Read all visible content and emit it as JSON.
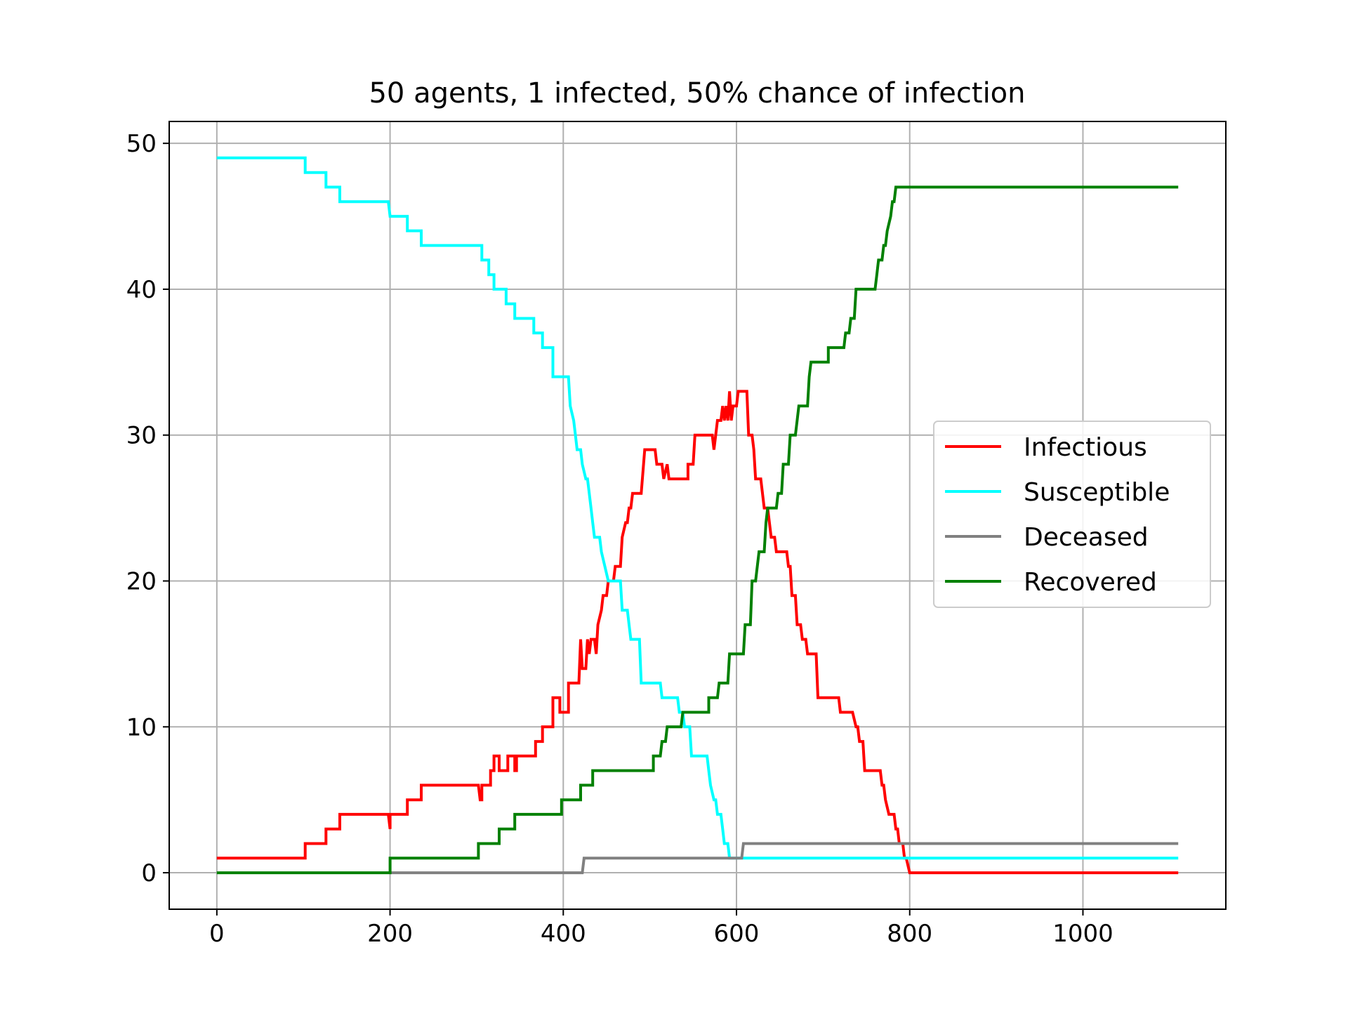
{
  "chart_data": {
    "type": "line",
    "title": "50 agents, 1 infected, 50% chance of infection",
    "xlabel": "",
    "ylabel": "",
    "xlim": [
      -55,
      1165
    ],
    "ylim": [
      -2.5,
      51.5
    ],
    "xticks": [
      0,
      200,
      400,
      600,
      800,
      1000
    ],
    "yticks": [
      0,
      10,
      20,
      30,
      40,
      50
    ],
    "grid": true,
    "legend_position": "center-right",
    "series": [
      {
        "name": "Infectious",
        "color": "#ff0000",
        "points": [
          [
            0,
            1
          ],
          [
            102,
            1
          ],
          [
            102,
            2
          ],
          [
            126,
            2
          ],
          [
            126,
            3
          ],
          [
            142,
            3
          ],
          [
            142,
            4
          ],
          [
            198,
            4
          ],
          [
            200,
            3
          ],
          [
            200,
            4
          ],
          [
            220,
            4
          ],
          [
            220,
            5
          ],
          [
            236,
            5
          ],
          [
            236,
            6
          ],
          [
            302,
            6
          ],
          [
            304,
            5
          ],
          [
            306,
            5
          ],
          [
            306,
            6
          ],
          [
            316,
            6
          ],
          [
            316,
            7
          ],
          [
            320,
            7
          ],
          [
            320,
            8
          ],
          [
            326,
            8
          ],
          [
            326,
            7
          ],
          [
            336,
            7
          ],
          [
            336,
            8
          ],
          [
            344,
            8
          ],
          [
            344,
            7
          ],
          [
            346,
            7
          ],
          [
            346,
            8
          ],
          [
            368,
            8
          ],
          [
            368,
            9
          ],
          [
            376,
            9
          ],
          [
            376,
            10
          ],
          [
            388,
            10
          ],
          [
            388,
            12
          ],
          [
            396,
            12
          ],
          [
            396,
            11
          ],
          [
            406,
            11
          ],
          [
            406,
            13
          ],
          [
            418,
            13
          ],
          [
            420,
            16
          ],
          [
            422,
            14
          ],
          [
            426,
            14
          ],
          [
            428,
            16
          ],
          [
            430,
            15
          ],
          [
            432,
            16
          ],
          [
            436,
            16
          ],
          [
            438,
            15
          ],
          [
            440,
            17
          ],
          [
            444,
            18
          ],
          [
            446,
            19
          ],
          [
            450,
            19
          ],
          [
            452,
            20
          ],
          [
            458,
            20
          ],
          [
            460,
            21
          ],
          [
            466,
            21
          ],
          [
            468,
            23
          ],
          [
            472,
            24
          ],
          [
            474,
            24
          ],
          [
            476,
            25
          ],
          [
            478,
            25
          ],
          [
            480,
            26
          ],
          [
            490,
            26
          ],
          [
            494,
            29
          ],
          [
            506,
            29
          ],
          [
            508,
            28
          ],
          [
            514,
            28
          ],
          [
            516,
            27
          ],
          [
            520,
            28
          ],
          [
            522,
            27
          ],
          [
            544,
            27
          ],
          [
            544,
            28
          ],
          [
            550,
            28
          ],
          [
            552,
            30
          ],
          [
            572,
            30
          ],
          [
            574,
            29
          ],
          [
            578,
            31
          ],
          [
            582,
            31
          ],
          [
            584,
            32
          ],
          [
            586,
            31
          ],
          [
            588,
            32
          ],
          [
            590,
            31
          ],
          [
            592,
            33
          ],
          [
            594,
            31
          ],
          [
            596,
            32
          ],
          [
            600,
            32
          ],
          [
            602,
            33
          ],
          [
            612,
            33
          ],
          [
            614,
            30
          ],
          [
            618,
            30
          ],
          [
            620,
            29
          ],
          [
            622,
            27
          ],
          [
            628,
            27
          ],
          [
            632,
            25
          ],
          [
            636,
            25
          ],
          [
            640,
            23
          ],
          [
            644,
            23
          ],
          [
            646,
            22
          ],
          [
            658,
            22
          ],
          [
            660,
            21
          ],
          [
            662,
            21
          ],
          [
            664,
            19
          ],
          [
            668,
            19
          ],
          [
            670,
            17
          ],
          [
            674,
            17
          ],
          [
            676,
            16
          ],
          [
            680,
            16
          ],
          [
            682,
            15
          ],
          [
            692,
            15
          ],
          [
            694,
            12
          ],
          [
            718,
            12
          ],
          [
            720,
            11
          ],
          [
            734,
            11
          ],
          [
            738,
            10
          ],
          [
            740,
            10
          ],
          [
            742,
            9
          ],
          [
            746,
            9
          ],
          [
            748,
            7
          ],
          [
            766,
            7
          ],
          [
            768,
            6
          ],
          [
            770,
            6
          ],
          [
            772,
            5
          ],
          [
            776,
            4
          ],
          [
            782,
            4
          ],
          [
            784,
            3
          ],
          [
            786,
            3
          ],
          [
            788,
            2
          ],
          [
            792,
            2
          ],
          [
            794,
            1
          ],
          [
            796,
            1
          ],
          [
            800,
            0
          ],
          [
            1110,
            0
          ]
        ]
      },
      {
        "name": "Susceptible",
        "color": "#00ffff",
        "points": [
          [
            0,
            49
          ],
          [
            102,
            49
          ],
          [
            102,
            48
          ],
          [
            126,
            48
          ],
          [
            126,
            47
          ],
          [
            142,
            47
          ],
          [
            142,
            46
          ],
          [
            198,
            46
          ],
          [
            200,
            45
          ],
          [
            220,
            45
          ],
          [
            220,
            44
          ],
          [
            236,
            44
          ],
          [
            236,
            43
          ],
          [
            306,
            43
          ],
          [
            306,
            42
          ],
          [
            314,
            42
          ],
          [
            314,
            41
          ],
          [
            320,
            41
          ],
          [
            320,
            40
          ],
          [
            334,
            40
          ],
          [
            334,
            39
          ],
          [
            344,
            39
          ],
          [
            344,
            38
          ],
          [
            366,
            38
          ],
          [
            366,
            37
          ],
          [
            376,
            37
          ],
          [
            376,
            36
          ],
          [
            388,
            36
          ],
          [
            388,
            34
          ],
          [
            406,
            34
          ],
          [
            408,
            32
          ],
          [
            412,
            31
          ],
          [
            414,
            30
          ],
          [
            416,
            29
          ],
          [
            420,
            29
          ],
          [
            422,
            28
          ],
          [
            426,
            27
          ],
          [
            428,
            27
          ],
          [
            430,
            26
          ],
          [
            432,
            25
          ],
          [
            434,
            24
          ],
          [
            436,
            23
          ],
          [
            442,
            23
          ],
          [
            444,
            22
          ],
          [
            448,
            21
          ],
          [
            452,
            20
          ],
          [
            466,
            20
          ],
          [
            468,
            18
          ],
          [
            474,
            18
          ],
          [
            476,
            17
          ],
          [
            478,
            16
          ],
          [
            488,
            16
          ],
          [
            490,
            13
          ],
          [
            512,
            13
          ],
          [
            514,
            12
          ],
          [
            532,
            12
          ],
          [
            534,
            11
          ],
          [
            538,
            11
          ],
          [
            540,
            10
          ],
          [
            546,
            10
          ],
          [
            548,
            8
          ],
          [
            566,
            8
          ],
          [
            568,
            7
          ],
          [
            570,
            6
          ],
          [
            574,
            5
          ],
          [
            576,
            5
          ],
          [
            578,
            4
          ],
          [
            582,
            4
          ],
          [
            584,
            3
          ],
          [
            586,
            2
          ],
          [
            590,
            2
          ],
          [
            592,
            1
          ],
          [
            1110,
            1
          ]
        ]
      },
      {
        "name": "Deceased",
        "color": "#808080",
        "points": [
          [
            200,
            0
          ],
          [
            422,
            0
          ],
          [
            424,
            1
          ],
          [
            606,
            1
          ],
          [
            608,
            2
          ],
          [
            1110,
            2
          ]
        ]
      },
      {
        "name": "Recovered",
        "color": "#008000",
        "points": [
          [
            0,
            0
          ],
          [
            200,
            0
          ],
          [
            200,
            1
          ],
          [
            302,
            1
          ],
          [
            302,
            2
          ],
          [
            326,
            2
          ],
          [
            326,
            3
          ],
          [
            344,
            3
          ],
          [
            344,
            4
          ],
          [
            398,
            4
          ],
          [
            398,
            5
          ],
          [
            420,
            5
          ],
          [
            420,
            6
          ],
          [
            434,
            6
          ],
          [
            434,
            7
          ],
          [
            504,
            7
          ],
          [
            504,
            8
          ],
          [
            512,
            8
          ],
          [
            514,
            9
          ],
          [
            518,
            9
          ],
          [
            520,
            10
          ],
          [
            536,
            10
          ],
          [
            538,
            11
          ],
          [
            568,
            11
          ],
          [
            568,
            12
          ],
          [
            578,
            12
          ],
          [
            580,
            13
          ],
          [
            590,
            13
          ],
          [
            592,
            15
          ],
          [
            608,
            15
          ],
          [
            610,
            17
          ],
          [
            616,
            17
          ],
          [
            618,
            20
          ],
          [
            622,
            20
          ],
          [
            626,
            22
          ],
          [
            632,
            22
          ],
          [
            634,
            24
          ],
          [
            636,
            25
          ],
          [
            646,
            25
          ],
          [
            648,
            26
          ],
          [
            652,
            26
          ],
          [
            654,
            28
          ],
          [
            660,
            28
          ],
          [
            662,
            30
          ],
          [
            668,
            30
          ],
          [
            670,
            31
          ],
          [
            672,
            32
          ],
          [
            682,
            32
          ],
          [
            684,
            34
          ],
          [
            686,
            35
          ],
          [
            706,
            35
          ],
          [
            706,
            36
          ],
          [
            724,
            36
          ],
          [
            726,
            37
          ],
          [
            730,
            37
          ],
          [
            732,
            38
          ],
          [
            736,
            38
          ],
          [
            738,
            40
          ],
          [
            760,
            40
          ],
          [
            762,
            41
          ],
          [
            764,
            42
          ],
          [
            768,
            42
          ],
          [
            770,
            43
          ],
          [
            772,
            43
          ],
          [
            774,
            44
          ],
          [
            778,
            45
          ],
          [
            780,
            46
          ],
          [
            782,
            46
          ],
          [
            784,
            47
          ],
          [
            802,
            47
          ],
          [
            1110,
            47
          ]
        ]
      }
    ]
  }
}
